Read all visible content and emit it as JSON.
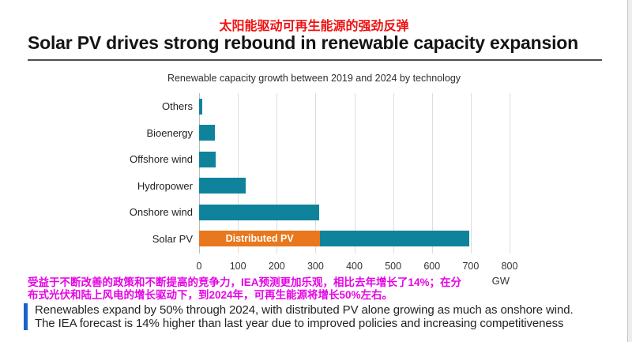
{
  "header": {
    "subtitle_cn": "太阳能驱动可再生能源的强劲反弹",
    "title": "Solar PV drives strong rebound in renewable capacity expansion"
  },
  "chart_data": {
    "type": "bar",
    "orientation": "horizontal",
    "title": "Renewable capacity growth between 2019 and 2024 by technology",
    "categories": [
      "Others",
      "Bioenergy",
      "Offshore wind",
      "Hydropower",
      "Onshore wind",
      "Solar PV"
    ],
    "values": [
      8,
      40,
      43,
      121,
      309,
      697
    ],
    "solar_pv_breakdown": {
      "distributed_pv": 312,
      "utility_pv": 385
    },
    "segment_label": "Distributed PV",
    "xlabel": "GW",
    "xlim": [
      0,
      800
    ],
    "xticks": [
      0,
      100,
      200,
      300,
      400,
      500,
      600,
      700,
      800
    ],
    "grid": true,
    "legend": "none",
    "bar_color": "#0F839C",
    "distributed_color": "#E8771E"
  },
  "notes": {
    "cn_lines": [
      "受益于不断改善的政策和不断提高的竞争力，IEA预测更加乐观，相比去年增长了14%；在分",
      "布式光伏和陆上风电的增长驱动下，到2024年，可再生能源将增长50%左右。"
    ],
    "en_lines": [
      "Renewables expand by 50% through 2024, with distributed PV alone growing as much as onshore wind.",
      "The IEA forecast is 14% higher than last year due to improved policies and increasing competitiveness"
    ]
  },
  "colors": {
    "title_red": "#EE1212",
    "note_magenta": "#E503E5",
    "note_bar_blue": "#1B62C9"
  }
}
